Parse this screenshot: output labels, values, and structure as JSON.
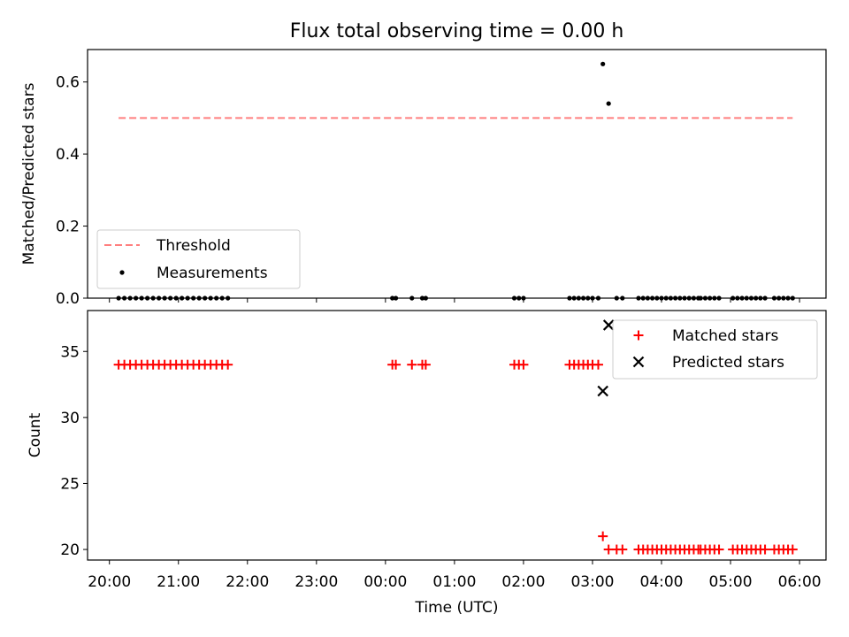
{
  "chart_data": [
    {
      "type": "scatter",
      "title": "Flux total observing time = 0.00 h",
      "xlabel": "",
      "ylabel": "Matched/Predicted stars",
      "ylim": [
        0,
        0.69
      ],
      "yticks": [
        "0.0",
        "0.2",
        "0.4",
        "0.6"
      ],
      "grid": false,
      "legend_position": "lower-left",
      "threshold": {
        "name": "Threshold",
        "value": 0.5,
        "x_start": "20:08",
        "x_end": "05:54",
        "color": "#ff7f7f"
      },
      "measurements": {
        "name": "Measurements",
        "color": "#000000",
        "points": [
          [
            "20:08",
            0.0
          ],
          [
            "20:13",
            0.0
          ],
          [
            "20:18",
            0.0
          ],
          [
            "20:23",
            0.0
          ],
          [
            "20:28",
            0.0
          ],
          [
            "20:33",
            0.0
          ],
          [
            "20:38",
            0.0
          ],
          [
            "20:43",
            0.0
          ],
          [
            "20:48",
            0.0
          ],
          [
            "20:53",
            0.0
          ],
          [
            "20:58",
            0.0
          ],
          [
            "21:03",
            0.0
          ],
          [
            "21:08",
            0.0
          ],
          [
            "21:13",
            0.0
          ],
          [
            "21:18",
            0.0
          ],
          [
            "21:23",
            0.0
          ],
          [
            "21:28",
            0.0
          ],
          [
            "21:33",
            0.0
          ],
          [
            "21:38",
            0.0
          ],
          [
            "21:43",
            0.0
          ],
          [
            "00:06",
            0.0
          ],
          [
            "00:09",
            0.0
          ],
          [
            "00:23",
            0.0
          ],
          [
            "00:32",
            0.0
          ],
          [
            "00:35",
            0.0
          ],
          [
            "01:52",
            0.0
          ],
          [
            "01:56",
            0.0
          ],
          [
            "02:00",
            0.0
          ],
          [
            "02:40",
            0.0
          ],
          [
            "02:44",
            0.0
          ],
          [
            "02:48",
            0.0
          ],
          [
            "02:52",
            0.0
          ],
          [
            "02:56",
            0.0
          ],
          [
            "03:00",
            0.0
          ],
          [
            "03:05",
            0.0
          ],
          [
            "03:09",
            0.65
          ],
          [
            "03:14",
            0.54
          ],
          [
            "03:21",
            0.0
          ],
          [
            "03:26",
            0.0
          ],
          [
            "03:40",
            0.0
          ],
          [
            "03:44",
            0.0
          ],
          [
            "03:48",
            0.0
          ],
          [
            "03:52",
            0.0
          ],
          [
            "03:56",
            0.0
          ],
          [
            "04:00",
            0.0
          ],
          [
            "04:04",
            0.0
          ],
          [
            "04:08",
            0.0
          ],
          [
            "04:12",
            0.0
          ],
          [
            "04:16",
            0.0
          ],
          [
            "04:20",
            0.0
          ],
          [
            "04:24",
            0.0
          ],
          [
            "04:28",
            0.0
          ],
          [
            "04:32",
            0.0
          ],
          [
            "04:34",
            0.0
          ],
          [
            "04:38",
            0.0
          ],
          [
            "04:42",
            0.0
          ],
          [
            "04:46",
            0.0
          ],
          [
            "04:50",
            0.0
          ],
          [
            "05:02",
            0.0
          ],
          [
            "05:06",
            0.0
          ],
          [
            "05:10",
            0.0
          ],
          [
            "05:14",
            0.0
          ],
          [
            "05:18",
            0.0
          ],
          [
            "05:22",
            0.0
          ],
          [
            "05:26",
            0.0
          ],
          [
            "05:30",
            0.0
          ],
          [
            "05:38",
            0.0
          ],
          [
            "05:42",
            0.0
          ],
          [
            "05:46",
            0.0
          ],
          [
            "05:50",
            0.0
          ],
          [
            "05:54",
            0.0
          ]
        ]
      }
    },
    {
      "type": "scatter",
      "title": "",
      "xlabel": "Time (UTC)",
      "ylabel": "Count",
      "ylim": [
        19.2,
        38.1
      ],
      "yticks": [
        "20",
        "25",
        "30",
        "35"
      ],
      "xlim": [
        "19:41",
        "06:23"
      ],
      "xticks": [
        "20:00",
        "21:00",
        "22:00",
        "23:00",
        "00:00",
        "01:00",
        "02:00",
        "03:00",
        "04:00",
        "05:00",
        "06:00"
      ],
      "grid": false,
      "legend_position": "upper-right",
      "series": [
        {
          "name": "Matched stars",
          "marker": "plus",
          "color": "#ff0000",
          "points": [
            [
              "20:08",
              34
            ],
            [
              "20:13",
              34
            ],
            [
              "20:18",
              34
            ],
            [
              "20:23",
              34
            ],
            [
              "20:28",
              34
            ],
            [
              "20:33",
              34
            ],
            [
              "20:38",
              34
            ],
            [
              "20:43",
              34
            ],
            [
              "20:48",
              34
            ],
            [
              "20:53",
              34
            ],
            [
              "20:58",
              34
            ],
            [
              "21:03",
              34
            ],
            [
              "21:08",
              34
            ],
            [
              "21:13",
              34
            ],
            [
              "21:18",
              34
            ],
            [
              "21:23",
              34
            ],
            [
              "21:28",
              34
            ],
            [
              "21:33",
              34
            ],
            [
              "21:38",
              34
            ],
            [
              "21:43",
              34
            ],
            [
              "00:06",
              34
            ],
            [
              "00:09",
              34
            ],
            [
              "00:23",
              34
            ],
            [
              "00:32",
              34
            ],
            [
              "00:35",
              34
            ],
            [
              "01:52",
              34
            ],
            [
              "01:56",
              34
            ],
            [
              "02:00",
              34
            ],
            [
              "02:40",
              34
            ],
            [
              "02:44",
              34
            ],
            [
              "02:48",
              34
            ],
            [
              "02:52",
              34
            ],
            [
              "02:56",
              34
            ],
            [
              "03:00",
              34
            ],
            [
              "03:05",
              34
            ],
            [
              "03:09",
              21
            ],
            [
              "03:14",
              20
            ],
            [
              "03:21",
              20
            ],
            [
              "03:26",
              20
            ],
            [
              "03:40",
              20
            ],
            [
              "03:44",
              20
            ],
            [
              "03:48",
              20
            ],
            [
              "03:52",
              20
            ],
            [
              "03:56",
              20
            ],
            [
              "04:00",
              20
            ],
            [
              "04:04",
              20
            ],
            [
              "04:08",
              20
            ],
            [
              "04:12",
              20
            ],
            [
              "04:16",
              20
            ],
            [
              "04:20",
              20
            ],
            [
              "04:24",
              20
            ],
            [
              "04:28",
              20
            ],
            [
              "04:32",
              20
            ],
            [
              "04:34",
              20
            ],
            [
              "04:38",
              20
            ],
            [
              "04:42",
              20
            ],
            [
              "04:46",
              20
            ],
            [
              "04:50",
              20
            ],
            [
              "05:02",
              20
            ],
            [
              "05:06",
              20
            ],
            [
              "05:10",
              20
            ],
            [
              "05:14",
              20
            ],
            [
              "05:18",
              20
            ],
            [
              "05:22",
              20
            ],
            [
              "05:26",
              20
            ],
            [
              "05:30",
              20
            ],
            [
              "05:38",
              20
            ],
            [
              "05:42",
              20
            ],
            [
              "05:46",
              20
            ],
            [
              "05:50",
              20
            ],
            [
              "05:54",
              20
            ]
          ]
        },
        {
          "name": "Predicted stars",
          "marker": "x",
          "color": "#000000",
          "points": [
            [
              "03:09",
              32
            ],
            [
              "03:14",
              37
            ]
          ]
        }
      ]
    }
  ]
}
